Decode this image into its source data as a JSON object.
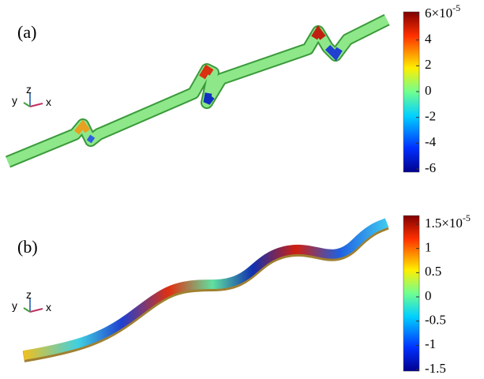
{
  "panels": [
    {
      "label": "(a)",
      "axes": {
        "y": "y",
        "z": "z",
        "x": "x"
      },
      "colorbar": {
        "ticks": [
          {
            "base": "6×10",
            "exponent": "-5"
          },
          "4",
          "2",
          "0",
          "-2",
          "-4",
          "-6"
        ]
      }
    },
    {
      "label": "(b)",
      "axes": {
        "y": "y",
        "z": "z",
        "x": "x"
      },
      "colorbar": {
        "ticks": [
          {
            "base": "1.5×10",
            "exponent": "-5"
          },
          "1",
          "0.5",
          "0",
          "-0.5",
          "-1",
          "-1.5"
        ]
      }
    }
  ]
}
